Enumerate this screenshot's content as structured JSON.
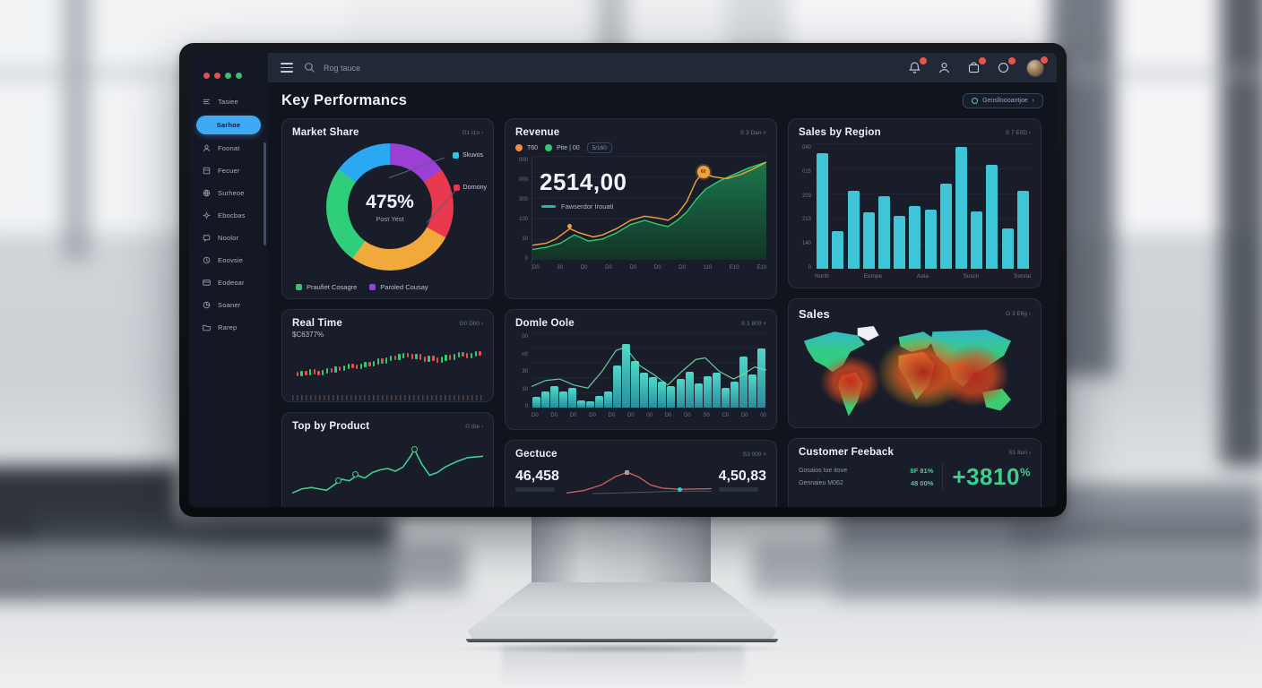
{
  "colors": {
    "accent_blue": "#3fa9f5",
    "cyan_bar": "#3ec6d8",
    "green": "#2ecc71",
    "orange": "#f0a23c",
    "red": "#e8394e",
    "teal": "#2fb3a8",
    "feedback_green": "#3ecf8e"
  },
  "window_dots": [
    "#e05252",
    "#e05252",
    "#3dbd6e",
    "#3dbd6e"
  ],
  "topbar": {
    "search_placeholder": "Rog tauce"
  },
  "sidebar": {
    "items": [
      {
        "label": "Tasiee",
        "icon": "list-icon"
      },
      {
        "label": "Sarhoe",
        "icon": "none",
        "active": true
      },
      {
        "label": "Foonat",
        "icon": "user-icon"
      },
      {
        "label": "Fecuer",
        "icon": "box-icon"
      },
      {
        "label": "Surheoe",
        "icon": "globe-icon"
      },
      {
        "label": "Ebocbas",
        "icon": "gear-icon"
      },
      {
        "label": "Noolor",
        "icon": "chat-icon"
      },
      {
        "label": "Eoovsie",
        "icon": "clock-icon"
      },
      {
        "label": "Eodeoar",
        "icon": "card-icon"
      },
      {
        "label": "Soaner",
        "icon": "pie-icon"
      },
      {
        "label": "Rarep",
        "icon": "folder-icon"
      }
    ]
  },
  "header": {
    "title": "Key Performancs",
    "filter_button": "Genslloooantjoe",
    "filter_chevron": "›"
  },
  "cards": {
    "market_share": {
      "title": "Market Share",
      "meta": "G1 I1o ›",
      "center_value": "475%",
      "center_label": "Post Yest",
      "callouts": [
        {
          "label": "Skuvos",
          "color": "#2bc4e8"
        },
        {
          "label": "Dornony",
          "color": "#e8394e"
        }
      ],
      "legend": [
        {
          "label": "Praufiet Cosagre",
          "color": "#3dbd6e"
        },
        {
          "label": "Paroled Cousay",
          "color": "#8e44d8"
        }
      ],
      "segments": [
        {
          "color": "#9b3fd6",
          "pct": 15
        },
        {
          "color": "#e8394e",
          "pct": 18
        },
        {
          "color": "#f2a93b",
          "pct": 27
        },
        {
          "color": "#2fce7a",
          "pct": 25
        },
        {
          "color": "#2aa9f2",
          "pct": 15
        }
      ]
    },
    "revenue": {
      "title": "Revenue",
      "meta": "S 3 Dan ×",
      "legend": [
        {
          "label": "T60",
          "color": "#f08a4b"
        },
        {
          "label": "Pite | 00",
          "color": "#2ecc71"
        }
      ],
      "legend_pill": "5/160",
      "big_value": "2514,00",
      "series_label": "Fawserdor Irouati",
      "marker_label": "60",
      "y_labels": [
        "000",
        "000",
        "300",
        "100",
        "10",
        "0"
      ],
      "x_labels": [
        "D0",
        "30",
        "D0",
        "D0",
        "D0",
        "D0",
        "D0",
        "110",
        "E10",
        "E10"
      ],
      "line": [
        [
          0,
          86
        ],
        [
          6,
          84
        ],
        [
          10,
          80
        ],
        [
          16,
          70
        ],
        [
          20,
          74
        ],
        [
          26,
          78
        ],
        [
          30,
          76
        ],
        [
          36,
          70
        ],
        [
          42,
          62
        ],
        [
          48,
          58
        ],
        [
          54,
          60
        ],
        [
          58,
          62
        ],
        [
          62,
          56
        ],
        [
          66,
          44
        ],
        [
          70,
          24
        ],
        [
          73,
          16
        ],
        [
          77,
          20
        ],
        [
          83,
          22
        ],
        [
          89,
          18
        ],
        [
          95,
          12
        ],
        [
          100,
          6
        ]
      ],
      "area": [
        [
          0,
          90
        ],
        [
          6,
          88
        ],
        [
          12,
          84
        ],
        [
          18,
          76
        ],
        [
          24,
          82
        ],
        [
          30,
          80
        ],
        [
          36,
          74
        ],
        [
          42,
          66
        ],
        [
          48,
          62
        ],
        [
          54,
          66
        ],
        [
          58,
          68
        ],
        [
          62,
          62
        ],
        [
          66,
          54
        ],
        [
          70,
          42
        ],
        [
          74,
          32
        ],
        [
          80,
          24
        ],
        [
          86,
          18
        ],
        [
          92,
          12
        ],
        [
          100,
          6
        ],
        [
          100,
          100
        ],
        [
          0,
          100
        ]
      ],
      "marker_pt": [
        73,
        16
      ],
      "marker_small_pt": [
        16,
        70
      ]
    },
    "sales_by_region": {
      "title": "Sales by Region",
      "meta": "S 7 E0D ›",
      "y_labels": [
        "040",
        "015",
        "203",
        "213",
        "140",
        "0"
      ],
      "x_labels": [
        "North",
        "Eumpe",
        "Aala",
        "Susch",
        "Sonrai"
      ],
      "values": [
        92,
        30,
        62,
        45,
        58,
        42,
        50,
        47,
        68,
        97,
        46,
        83,
        32,
        62
      ]
    },
    "sales_map": {
      "title": "Sales",
      "meta": "G 3 E6g ›"
    },
    "real_time": {
      "title": "Real Time",
      "meta": "G0 D00 ›",
      "subtitle": "$C6377%",
      "candles": [
        28,
        26,
        30,
        29,
        33,
        30,
        28,
        32,
        35,
        34,
        38,
        36,
        40,
        44,
        42,
        40,
        44,
        47,
        45,
        49,
        53,
        51,
        55,
        59,
        57,
        61,
        64,
        62,
        58,
        61,
        57,
        54,
        58,
        55,
        52,
        56,
        60,
        57,
        62,
        65,
        63,
        60,
        64,
        67,
        66
      ]
    },
    "top_product": {
      "title": "Top by Product",
      "meta": "© t0e ›",
      "line": [
        [
          0,
          82
        ],
        [
          5,
          76
        ],
        [
          10,
          74
        ],
        [
          14,
          76
        ],
        [
          18,
          78
        ],
        [
          22,
          70
        ],
        [
          26,
          62
        ],
        [
          30,
          64
        ],
        [
          34,
          56
        ],
        [
          38,
          60
        ],
        [
          42,
          52
        ],
        [
          46,
          48
        ],
        [
          50,
          46
        ],
        [
          54,
          50
        ],
        [
          58,
          44
        ],
        [
          62,
          28
        ],
        [
          64,
          18
        ],
        [
          68,
          40
        ],
        [
          72,
          56
        ],
        [
          76,
          52
        ],
        [
          80,
          44
        ],
        [
          86,
          36
        ],
        [
          92,
          30
        ],
        [
          100,
          28
        ]
      ],
      "markers": [
        [
          24,
          64
        ],
        [
          33,
          55
        ],
        [
          64,
          18
        ]
      ]
    },
    "domle": {
      "title": "Domle Oole",
      "meta": "S 1 800 ×",
      "y_labels": [
        "00",
        "n0",
        "30",
        "10",
        "0"
      ],
      "x_labels": [
        "D0",
        "D0",
        "D0",
        "D0",
        "D0",
        "D0",
        "00",
        "D0",
        "D0",
        "S0",
        "C0",
        "D0",
        "00"
      ],
      "values": [
        14,
        22,
        28,
        22,
        26,
        10,
        8,
        16,
        22,
        56,
        84,
        62,
        46,
        40,
        34,
        28,
        38,
        48,
        32,
        42,
        46,
        26,
        34,
        68,
        44,
        78
      ],
      "line": [
        [
          0,
          72
        ],
        [
          6,
          64
        ],
        [
          12,
          62
        ],
        [
          18,
          70
        ],
        [
          24,
          74
        ],
        [
          30,
          52
        ],
        [
          36,
          24
        ],
        [
          40,
          20
        ],
        [
          46,
          44
        ],
        [
          52,
          56
        ],
        [
          58,
          70
        ],
        [
          64,
          52
        ],
        [
          70,
          36
        ],
        [
          74,
          34
        ],
        [
          80,
          52
        ],
        [
          86,
          62
        ],
        [
          90,
          56
        ],
        [
          95,
          46
        ],
        [
          100,
          50
        ]
      ]
    },
    "gectuce": {
      "title": "Gectuce",
      "meta": "S3 000 ×",
      "left_value": "46,458",
      "right_value": "4,50,83",
      "spark": [
        [
          0,
          92
        ],
        [
          12,
          84
        ],
        [
          24,
          66
        ],
        [
          34,
          38
        ],
        [
          42,
          24
        ],
        [
          50,
          40
        ],
        [
          58,
          66
        ],
        [
          66,
          76
        ],
        [
          78,
          80
        ],
        [
          100,
          78
        ]
      ],
      "spark_gray": [
        [
          18,
          94
        ],
        [
          50,
          90
        ],
        [
          78,
          86
        ],
        [
          100,
          86
        ]
      ],
      "marker_sq": [
        42,
        24
      ],
      "marker_dot": [
        78,
        80
      ]
    },
    "feedback": {
      "title": "Customer Feeback",
      "meta": "S1 8un ›",
      "rows": [
        {
          "label": "Gosaios toe itove",
          "value": "8F 81%"
        },
        {
          "label": "Gennaieu M062",
          "value": "48 00%"
        }
      ],
      "big_value": "+3810",
      "big_suffix": "%"
    }
  }
}
